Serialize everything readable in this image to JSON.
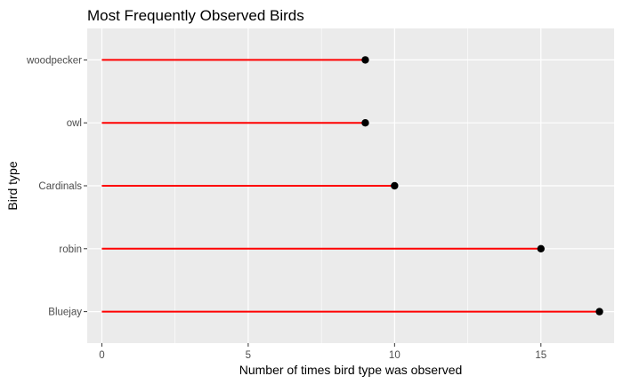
{
  "chart_data": {
    "type": "lollipop",
    "title": "Most Frequently Observed Birds",
    "xlabel": "Number of times bird type was observed",
    "ylabel": "Bird type",
    "categories": [
      "woodpecker",
      "owl",
      "Cardinals",
      "robin",
      "Bluejay"
    ],
    "values": [
      9,
      9,
      10,
      15,
      17
    ],
    "xlim": [
      -0.5,
      17.5
    ],
    "x_ticks": [
      0,
      5,
      10,
      15
    ],
    "grid": true,
    "colors": {
      "panel": "#ebebeb",
      "grid_major": "#ffffff",
      "segment": "#ff0000",
      "point": "#000000",
      "tick": "#333333"
    }
  }
}
